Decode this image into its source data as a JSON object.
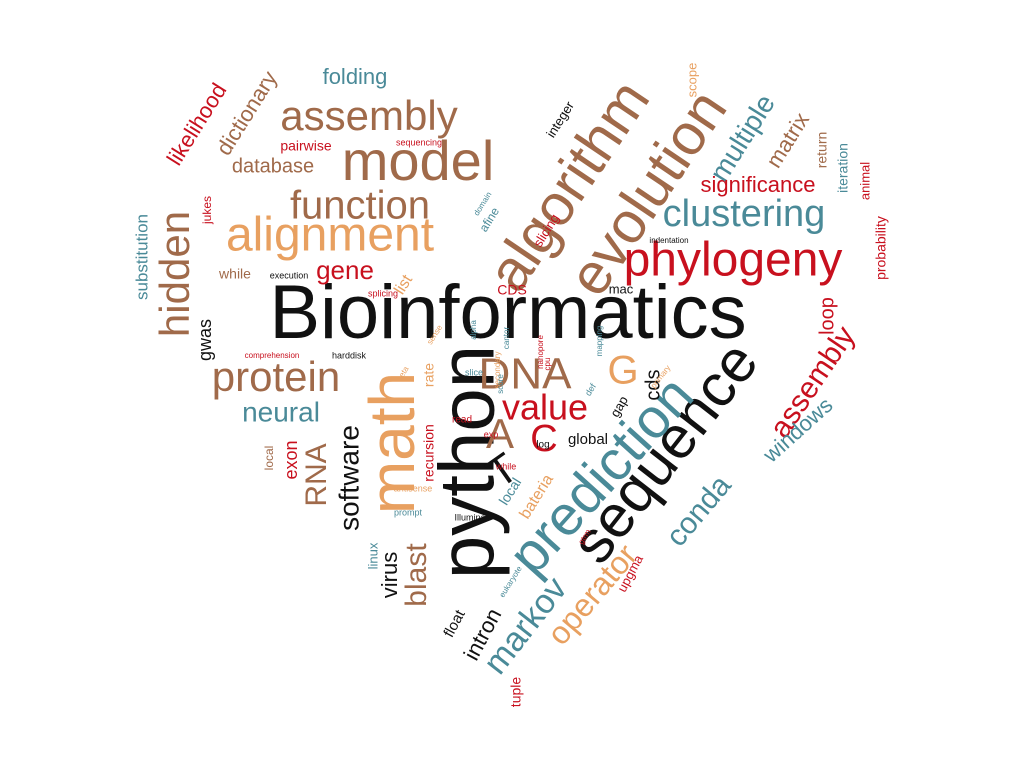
{
  "colors": {
    "black": "#111111",
    "brown": "#a06a4a",
    "red": "#c8101e",
    "teal": "#4a8a98",
    "orange": "#e8a060"
  },
  "words": [
    {
      "id": "bioinformatics",
      "text": "Bioinformatics",
      "color": "black"
    },
    {
      "id": "python",
      "text": "python",
      "color": "black"
    },
    {
      "id": "sequence",
      "text": "sequence",
      "color": "black"
    },
    {
      "id": "prediction",
      "text": "prediction",
      "color": "teal"
    },
    {
      "id": "math",
      "text": "math",
      "color": "orange"
    },
    {
      "id": "algorithm",
      "text": "algorithm",
      "color": "brown"
    },
    {
      "id": "evolution",
      "text": "evolution",
      "color": "brown"
    },
    {
      "id": "model",
      "text": "model",
      "color": "brown"
    },
    {
      "id": "alignment",
      "text": "alignment",
      "color": "orange"
    },
    {
      "id": "phylogeny",
      "text": "phylogeny",
      "color": "red"
    },
    {
      "id": "function",
      "text": "function",
      "color": "brown"
    },
    {
      "id": "assembly-top",
      "text": "assembly",
      "color": "brown"
    },
    {
      "id": "clustering",
      "text": "clustering",
      "color": "teal"
    },
    {
      "id": "protein",
      "text": "protein",
      "color": "brown"
    },
    {
      "id": "hidden",
      "text": "hidden",
      "color": "brown"
    },
    {
      "id": "dna",
      "text": "DNA",
      "color": "brown"
    },
    {
      "id": "g",
      "text": "G",
      "color": "orange"
    },
    {
      "id": "t",
      "text": "T",
      "color": "black"
    },
    {
      "id": "a",
      "text": "A",
      "color": "brown"
    },
    {
      "id": "c",
      "text": "C",
      "color": "red"
    },
    {
      "id": "value",
      "text": "value",
      "color": "red"
    },
    {
      "id": "neural",
      "text": "neural",
      "color": "teal"
    },
    {
      "id": "rna",
      "text": "RNA",
      "color": "brown"
    },
    {
      "id": "software",
      "text": "software",
      "color": "black"
    },
    {
      "id": "blast",
      "text": "blast",
      "color": "brown"
    },
    {
      "id": "virus",
      "text": "virus",
      "color": "black"
    },
    {
      "id": "markov",
      "text": "markov",
      "color": "teal"
    },
    {
      "id": "operator",
      "text": "operator",
      "color": "orange"
    },
    {
      "id": "conda",
      "text": "conda",
      "color": "teal"
    },
    {
      "id": "assembly-right",
      "text": "assembly",
      "color": "red"
    },
    {
      "id": "windows",
      "text": "windows",
      "color": "teal"
    },
    {
      "id": "multiple",
      "text": "multiple",
      "color": "teal"
    },
    {
      "id": "matrix",
      "text": "matrix",
      "color": "brown"
    },
    {
      "id": "significance",
      "text": "significance",
      "color": "red"
    },
    {
      "id": "gene",
      "text": "gene",
      "color": "red"
    },
    {
      "id": "likelihood",
      "text": "likelihood",
      "color": "red"
    },
    {
      "id": "dictionary",
      "text": "dictionary",
      "color": "brown"
    },
    {
      "id": "folding",
      "text": "folding",
      "color": "teal"
    },
    {
      "id": "database",
      "text": "database",
      "color": "brown"
    },
    {
      "id": "pairwise",
      "text": "pairwise",
      "color": "red"
    },
    {
      "id": "sequencing",
      "text": "sequencing",
      "color": "red"
    },
    {
      "id": "integer",
      "text": "integer",
      "color": "black"
    },
    {
      "id": "scope",
      "text": "scope",
      "color": "orange"
    },
    {
      "id": "return",
      "text": "return",
      "color": "brown"
    },
    {
      "id": "iteration",
      "text": "iteration",
      "color": "teal"
    },
    {
      "id": "animal",
      "text": "animal",
      "color": "red"
    },
    {
      "id": "probability",
      "text": "probability",
      "color": "red"
    },
    {
      "id": "loop",
      "text": "loop",
      "color": "red"
    },
    {
      "id": "cds-lower",
      "text": "cds",
      "color": "black"
    },
    {
      "id": "cds-upper",
      "text": "CDS",
      "color": "red"
    },
    {
      "id": "mac",
      "text": "mac",
      "color": "black"
    },
    {
      "id": "gwas",
      "text": "gwas",
      "color": "black"
    },
    {
      "id": "substitution",
      "text": "substitution",
      "color": "teal"
    },
    {
      "id": "jukes",
      "text": "jukes",
      "color": "red"
    },
    {
      "id": "while-left",
      "text": "while",
      "color": "brown"
    },
    {
      "id": "execution",
      "text": "execution",
      "color": "black"
    },
    {
      "id": "list",
      "text": "list",
      "color": "orange"
    },
    {
      "id": "splicing",
      "text": "splicing",
      "color": "red"
    },
    {
      "id": "slicing",
      "text": "slicing",
      "color": "red"
    },
    {
      "id": "afine",
      "text": "afine",
      "color": "teal"
    },
    {
      "id": "domain",
      "text": "domain",
      "color": "teal"
    },
    {
      "id": "indentation",
      "text": "indentation",
      "color": "black"
    },
    {
      "id": "comprehension",
      "text": "comprehension",
      "color": "red"
    },
    {
      "id": "harddisk",
      "text": "harddisk",
      "color": "black"
    },
    {
      "id": "exon",
      "text": "exon",
      "color": "red"
    },
    {
      "id": "local-left",
      "text": "local",
      "color": "brown"
    },
    {
      "id": "local-mid",
      "text": "local",
      "color": "teal"
    },
    {
      "id": "recursion",
      "text": "recursion",
      "color": "red"
    },
    {
      "id": "rate",
      "text": "rate",
      "color": "orange"
    },
    {
      "id": "beta",
      "text": "beta",
      "color": "orange"
    },
    {
      "id": "sense",
      "text": "sense",
      "color": "orange"
    },
    {
      "id": "alpha",
      "text": "alpha",
      "color": "teal"
    },
    {
      "id": "slice",
      "text": "slice",
      "color": "teal"
    },
    {
      "id": "secondary",
      "text": "secondary",
      "color": "orange"
    },
    {
      "id": "cantor",
      "text": "cantor",
      "color": "teal"
    },
    {
      "id": "nanopore",
      "text": "nanopore",
      "color": "red"
    },
    {
      "id": "cpu",
      "text": "cpu",
      "color": "red"
    },
    {
      "id": "mapping",
      "text": "mapping",
      "color": "teal"
    },
    {
      "id": "score",
      "text": "score",
      "color": "teal"
    },
    {
      "id": "primary",
      "text": "primary",
      "color": "orange"
    },
    {
      "id": "read",
      "text": "read",
      "color": "red"
    },
    {
      "id": "exp",
      "text": "exp",
      "color": "red"
    },
    {
      "id": "log",
      "text": "log",
      "color": "black"
    },
    {
      "id": "def",
      "text": "def",
      "color": "teal"
    },
    {
      "id": "gap",
      "text": "gap",
      "color": "black"
    },
    {
      "id": "global",
      "text": "global",
      "color": "black"
    },
    {
      "id": "while-mid",
      "text": "while",
      "color": "red"
    },
    {
      "id": "antisense",
      "text": "antisense",
      "color": "orange"
    },
    {
      "id": "bateria",
      "text": "bateria",
      "color": "orange"
    },
    {
      "id": "prompt",
      "text": "prompt",
      "color": "teal"
    },
    {
      "id": "illumina",
      "text": "Illumina",
      "color": "black"
    },
    {
      "id": "linux",
      "text": "linux",
      "color": "teal"
    },
    {
      "id": "gtrm",
      "text": "gtrm",
      "color": "red"
    },
    {
      "id": "eukaryote",
      "text": "eukaryote",
      "color": "teal"
    },
    {
      "id": "upgma",
      "text": "upgma",
      "color": "red"
    },
    {
      "id": "float",
      "text": "float",
      "color": "black"
    },
    {
      "id": "intron",
      "text": "intron",
      "color": "black"
    },
    {
      "id": "tuple",
      "text": "tuple",
      "color": "red"
    }
  ]
}
